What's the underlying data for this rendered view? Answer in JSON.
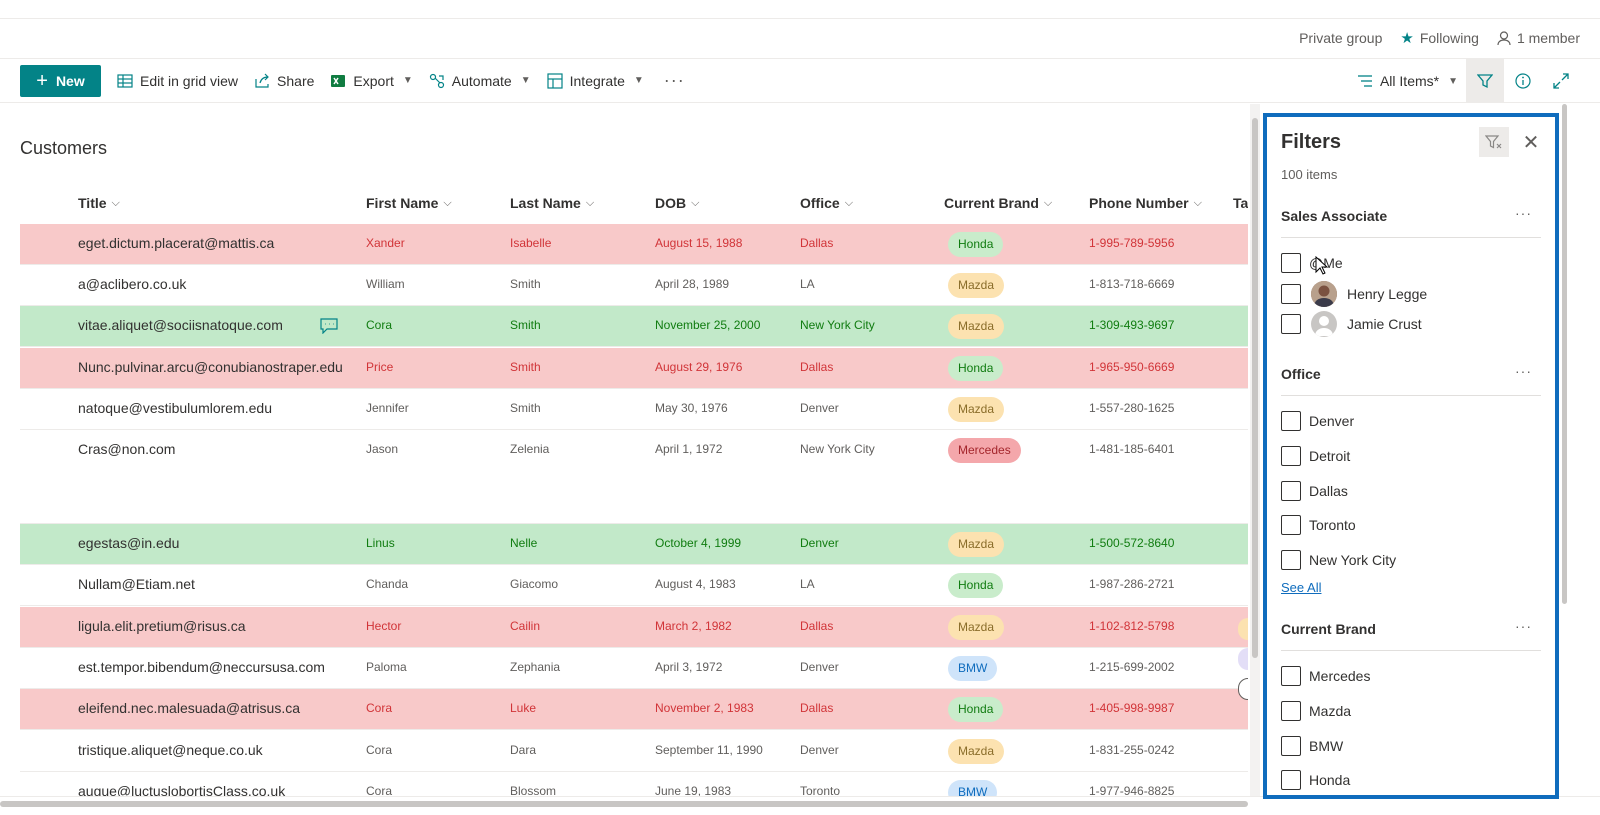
{
  "group_bar": {
    "privacy": "Private group",
    "following": "Following",
    "members": "1 member"
  },
  "commands": {
    "new": "New",
    "edit_grid": "Edit in grid view",
    "share": "Share",
    "export": "Export",
    "automate": "Automate",
    "integrate": "Integrate",
    "more": "···",
    "view": "All Items*"
  },
  "page": {
    "title": "Customers"
  },
  "columns": [
    "Title",
    "First Name",
    "Last Name",
    "DOB",
    "Office",
    "Current Brand",
    "Phone Number",
    "Ta"
  ],
  "rows": [
    {
      "title": "eget.dictum.placerat@mattis.ca",
      "first": "Xander",
      "last": "Isabelle",
      "dob": "August 15, 1988",
      "office": "Dallas",
      "brand": "Honda",
      "phone": "1-995-789-5956",
      "color": "red"
    },
    {
      "title": "a@aclibero.co.uk",
      "first": "William",
      "last": "Smith",
      "dob": "April 28, 1989",
      "office": "LA",
      "brand": "Mazda",
      "phone": "1-813-718-6669",
      "color": "plain"
    },
    {
      "title": "vitae.aliquet@sociisnatoque.com",
      "first": "Cora",
      "last": "Smith",
      "dob": "November 25, 2000",
      "office": "New York City",
      "brand": "Mazda",
      "phone": "1-309-493-9697",
      "color": "green"
    },
    {
      "title": "Nunc.pulvinar.arcu@conubianostraper.edu",
      "first": "Price",
      "last": "Smith",
      "dob": "August 29, 1976",
      "office": "Dallas",
      "brand": "Honda",
      "phone": "1-965-950-6669",
      "color": "red"
    },
    {
      "title": "natoque@vestibulumlorem.edu",
      "first": "Jennifer",
      "last": "Smith",
      "dob": "May 30, 1976",
      "office": "Denver",
      "brand": "Mazda",
      "phone": "1-557-280-1625",
      "color": "plain"
    },
    {
      "title": "Cras@non.com",
      "first": "Jason",
      "last": "Zelenia",
      "dob": "April 1, 1972",
      "office": "New York City",
      "brand": "Mercedes",
      "phone": "1-481-185-6401",
      "color": "plain"
    },
    {
      "title": "egestas@in.edu",
      "first": "Linus",
      "last": "Nelle",
      "dob": "October 4, 1999",
      "office": "Denver",
      "brand": "Mazda",
      "phone": "1-500-572-8640",
      "color": "green"
    },
    {
      "title": "Nullam@Etiam.net",
      "first": "Chanda",
      "last": "Giacomo",
      "dob": "August 4, 1983",
      "office": "LA",
      "brand": "Honda",
      "phone": "1-987-286-2721",
      "color": "plain"
    },
    {
      "title": "ligula.elit.pretium@risus.ca",
      "first": "Hector",
      "last": "Cailin",
      "dob": "March 2, 1982",
      "office": "Dallas",
      "brand": "Mazda",
      "phone": "1-102-812-5798",
      "color": "red"
    },
    {
      "title": "est.tempor.bibendum@neccursusa.com",
      "first": "Paloma",
      "last": "Zephania",
      "dob": "April 3, 1972",
      "office": "Denver",
      "brand": "BMW",
      "phone": "1-215-699-2002",
      "color": "plain"
    },
    {
      "title": "eleifend.nec.malesuada@atrisus.ca",
      "first": "Cora",
      "last": "Luke",
      "dob": "November 2, 1983",
      "office": "Dallas",
      "brand": "Honda",
      "phone": "1-405-998-9987",
      "color": "red"
    },
    {
      "title": "tristique.aliquet@neque.co.uk",
      "first": "Cora",
      "last": "Dara",
      "dob": "September 11, 1990",
      "office": "Denver",
      "brand": "Mazda",
      "phone": "1-831-255-0242",
      "color": "plain"
    },
    {
      "title": "augue@luctuslobortisClass.co.uk",
      "first": "Cora",
      "last": "Blossom",
      "dob": "June 19, 1983",
      "office": "Toronto",
      "brand": "BMW",
      "phone": "1-977-946-8825",
      "color": "plain"
    }
  ],
  "filters": {
    "title": "Filters",
    "count": "100 items",
    "sales_associate": {
      "title": "Sales Associate",
      "more": "···",
      "options": [
        "@Me",
        "Henry Legge",
        "Jamie Crust"
      ]
    },
    "office": {
      "title": "Office",
      "more": "···",
      "options": [
        "Denver",
        "Detroit",
        "Dallas",
        "Toronto",
        "New York City"
      ],
      "see_all": "See All"
    },
    "current_brand": {
      "title": "Current Brand",
      "more": "···",
      "options": [
        "Mercedes",
        "Mazda",
        "BMW",
        "Honda"
      ]
    }
  },
  "colors": {
    "accent": "#038387",
    "red_row": "#f8c9c9",
    "green_row": "#c2e9c9",
    "filter_border": "#0f6cbd"
  }
}
